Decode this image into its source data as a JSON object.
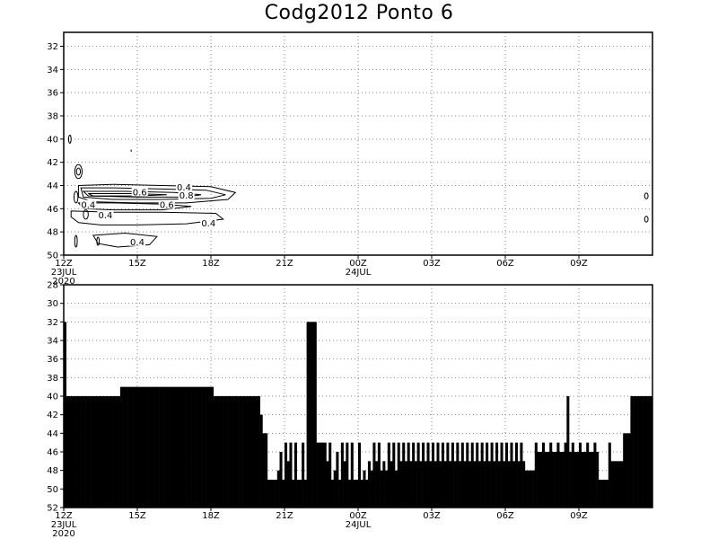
{
  "title": "Codg2012 Ponto 6",
  "chart_data": [
    {
      "type": "contour",
      "name": "upper-panel",
      "y_ticks": [
        "32",
        "34",
        "36",
        "38",
        "40",
        "42",
        "44",
        "46",
        "48",
        "50"
      ],
      "y_range": [
        30.8,
        50
      ],
      "y_inverted": true,
      "x_tick_labels": [
        "12Z",
        "15Z",
        "18Z",
        "21Z",
        "00Z",
        "03Z",
        "06Z",
        "09Z"
      ],
      "x_tick_hours": [
        0,
        3,
        6,
        9,
        12,
        15,
        18,
        21
      ],
      "x_range_hours": [
        0,
        24
      ],
      "x_sublabels": [
        {
          "hour": 0,
          "lines": [
            "23JUL",
            "2020"
          ]
        },
        {
          "hour": 12,
          "lines": [
            "24JUL"
          ]
        }
      ],
      "grid": true,
      "contour_levels": [
        "0.4",
        "0.6",
        "0.8"
      ],
      "contour_labels": [
        {
          "text": "0.4",
          "x": 4.9,
          "y": 44.2
        },
        {
          "text": "0.6",
          "x": 3.1,
          "y": 44.6
        },
        {
          "text": "0.8",
          "x": 5.0,
          "y": 44.9
        },
        {
          "text": "0.4",
          "x": 1.0,
          "y": 45.7
        },
        {
          "text": "0.6",
          "x": 4.2,
          "y": 45.7
        },
        {
          "text": "0.4",
          "x": 1.7,
          "y": 46.6
        },
        {
          "text": "0.4",
          "x": 5.9,
          "y": 47.3
        },
        {
          "text": "0.4",
          "x": 3.0,
          "y": 48.9
        }
      ]
    },
    {
      "type": "bar",
      "name": "lower-panel",
      "y_ticks": [
        "28",
        "30",
        "32",
        "34",
        "36",
        "38",
        "40",
        "42",
        "44",
        "46",
        "48",
        "50",
        "52"
      ],
      "y_range": [
        28,
        52
      ],
      "y_inverted": true,
      "x_tick_labels": [
        "12Z",
        "15Z",
        "18Z",
        "21Z",
        "00Z",
        "03Z",
        "06Z",
        "09Z"
      ],
      "x_tick_hours": [
        0,
        3,
        6,
        9,
        12,
        15,
        18,
        21
      ],
      "x_range_hours": [
        0,
        24
      ],
      "x_sublabels": [
        {
          "hour": 0,
          "lines": [
            "23JUL",
            "2020"
          ]
        },
        {
          "hour": 12,
          "lines": [
            "24JUL"
          ]
        }
      ],
      "grid": true,
      "bar_step_hours": 0.1
    }
  ]
}
